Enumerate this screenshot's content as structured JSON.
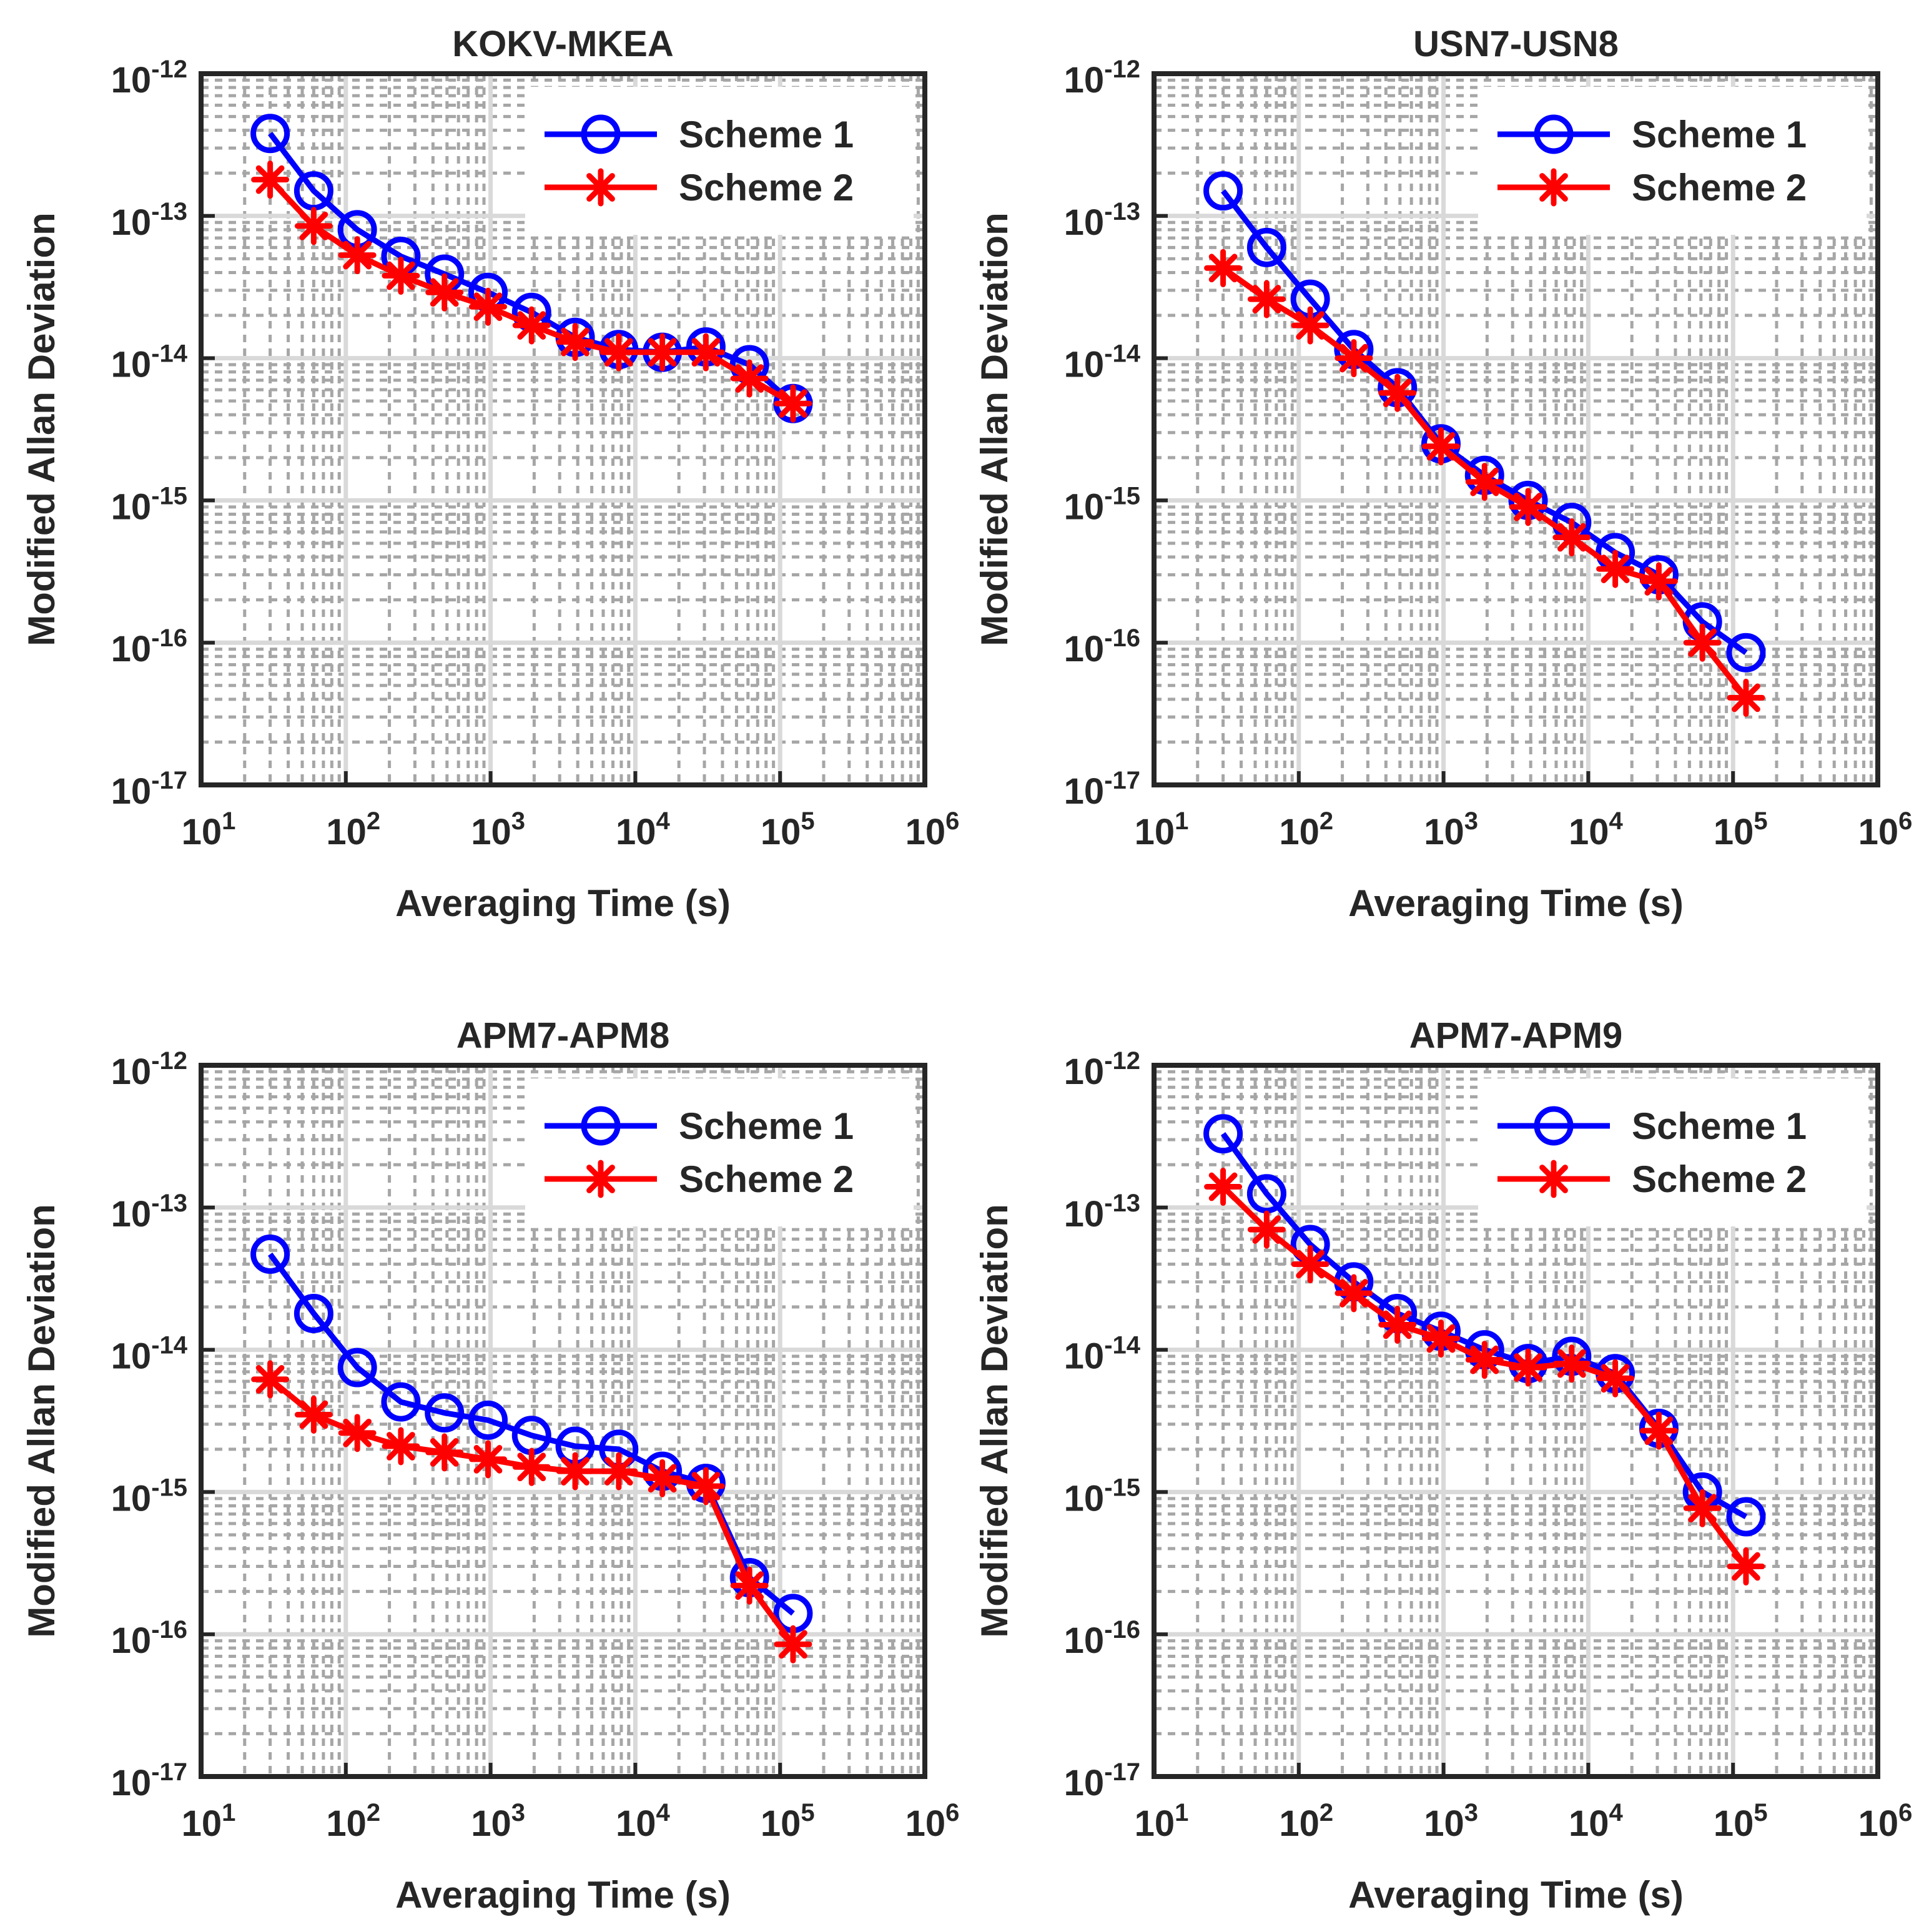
{
  "colors": {
    "scheme1": "#0000ff",
    "scheme2": "#ff0000",
    "axis": "#262626",
    "grid_major": "#d9d9d9",
    "grid_minor": "#a6a6a6"
  },
  "chart_data": [
    {
      "type": "line",
      "title": "KOKV-MKEA",
      "xlabel": "Averaging Time (s)",
      "ylabel": "Modified Allan Deviation",
      "xscale": "log",
      "yscale": "log",
      "xlim": [
        10,
        1000000
      ],
      "ylim": [
        1e-17,
        1e-12
      ],
      "xticks": [
        {
          "base": "10",
          "exp": "1"
        },
        {
          "base": "10",
          "exp": "2"
        },
        {
          "base": "10",
          "exp": "3"
        },
        {
          "base": "10",
          "exp": "4"
        },
        {
          "base": "10",
          "exp": "5"
        },
        {
          "base": "10",
          "exp": "6"
        }
      ],
      "yticks": [
        {
          "base": "10",
          "exp": "-17"
        },
        {
          "base": "10",
          "exp": "-16"
        },
        {
          "base": "10",
          "exp": "-15"
        },
        {
          "base": "10",
          "exp": "-14"
        },
        {
          "base": "10",
          "exp": "-13"
        },
        {
          "base": "10",
          "exp": "-12"
        }
      ],
      "grid": "major and minor",
      "legend_position": "top-right",
      "x": [
        30,
        60,
        120,
        240,
        480,
        960,
        1920,
        3840,
        7680,
        15360,
        30720,
        61440,
        122880
      ],
      "series": [
        {
          "name": "Scheme 1",
          "marker": "circle",
          "color": "#0000ff",
          "values": [
            3.8e-13,
            1.5e-13,
            8e-14,
            5.2e-14,
            3.9e-14,
            2.9e-14,
            2.1e-14,
            1.4e-14,
            1.15e-14,
            1.1e-14,
            1.2e-14,
            9e-15,
            4.8e-15
          ]
        },
        {
          "name": "Scheme 2",
          "marker": "asterisk",
          "color": "#ff0000",
          "values": [
            1.8e-13,
            8.5e-14,
            5.3e-14,
            3.8e-14,
            2.9e-14,
            2.3e-14,
            1.7e-14,
            1.3e-14,
            1.1e-14,
            1.1e-14,
            1.1e-14,
            7.2e-15,
            4.8e-15
          ]
        }
      ]
    },
    {
      "type": "line",
      "title": "USN7-USN8",
      "xlabel": "Averaging Time (s)",
      "ylabel": "Modified Allan Deviation",
      "xscale": "log",
      "yscale": "log",
      "xlim": [
        10,
        1000000
      ],
      "ylim": [
        1e-17,
        1e-12
      ],
      "xticks": [
        {
          "base": "10",
          "exp": "1"
        },
        {
          "base": "10",
          "exp": "2"
        },
        {
          "base": "10",
          "exp": "3"
        },
        {
          "base": "10",
          "exp": "4"
        },
        {
          "base": "10",
          "exp": "5"
        },
        {
          "base": "10",
          "exp": "6"
        }
      ],
      "yticks": [
        {
          "base": "10",
          "exp": "-17"
        },
        {
          "base": "10",
          "exp": "-16"
        },
        {
          "base": "10",
          "exp": "-15"
        },
        {
          "base": "10",
          "exp": "-14"
        },
        {
          "base": "10",
          "exp": "-13"
        },
        {
          "base": "10",
          "exp": "-12"
        }
      ],
      "grid": "major and minor",
      "legend_position": "top-right",
      "x": [
        30,
        60,
        120,
        240,
        480,
        960,
        1920,
        3840,
        7680,
        15360,
        30720,
        61440,
        122880
      ],
      "series": [
        {
          "name": "Scheme 1",
          "marker": "circle",
          "color": "#0000ff",
          "values": [
            1.5e-13,
            6e-14,
            2.6e-14,
            1.15e-14,
            6.2e-15,
            2.5e-15,
            1.5e-15,
            1e-15,
            7e-16,
            4.3e-16,
            3e-16,
            1.4e-16,
            8.5e-17
          ]
        },
        {
          "name": "Scheme 2",
          "marker": "asterisk",
          "color": "#ff0000",
          "values": [
            4.3e-14,
            2.6e-14,
            1.7e-14,
            1e-14,
            5.7e-15,
            2.4e-15,
            1.35e-15,
            9e-16,
            5.5e-16,
            3.3e-16,
            2.7e-16,
            1e-16,
            4.1e-17
          ]
        }
      ]
    },
    {
      "type": "line",
      "title": "APM7-APM8",
      "xlabel": "Averaging Time (s)",
      "ylabel": "Modified Allan Deviation",
      "xscale": "log",
      "yscale": "log",
      "xlim": [
        10,
        1000000
      ],
      "ylim": [
        1e-17,
        1e-12
      ],
      "xticks": [
        {
          "base": "10",
          "exp": "1"
        },
        {
          "base": "10",
          "exp": "2"
        },
        {
          "base": "10",
          "exp": "3"
        },
        {
          "base": "10",
          "exp": "4"
        },
        {
          "base": "10",
          "exp": "5"
        },
        {
          "base": "10",
          "exp": "6"
        }
      ],
      "yticks": [
        {
          "base": "10",
          "exp": "-17"
        },
        {
          "base": "10",
          "exp": "-16"
        },
        {
          "base": "10",
          "exp": "-15"
        },
        {
          "base": "10",
          "exp": "-14"
        },
        {
          "base": "10",
          "exp": "-13"
        },
        {
          "base": "10",
          "exp": "-12"
        }
      ],
      "grid": "major and minor",
      "legend_position": "top-right",
      "x": [
        30,
        60,
        120,
        240,
        480,
        960,
        1920,
        3840,
        7680,
        15360,
        30720,
        61440,
        122880
      ],
      "series": [
        {
          "name": "Scheme 1",
          "marker": "circle",
          "color": "#0000ff",
          "values": [
            4.7e-14,
            1.8e-14,
            7.5e-15,
            4.3e-15,
            3.6e-15,
            3.2e-15,
            2.5e-15,
            2.1e-15,
            2e-15,
            1.4e-15,
            1.15e-15,
            2.5e-16,
            1.4e-16
          ]
        },
        {
          "name": "Scheme 2",
          "marker": "asterisk",
          "color": "#ff0000",
          "values": [
            6.2e-15,
            3.5e-15,
            2.6e-15,
            2.1e-15,
            1.9e-15,
            1.7e-15,
            1.5e-15,
            1.4e-15,
            1.4e-15,
            1.25e-15,
            1.1e-15,
            2.2e-16,
            8.5e-17
          ]
        }
      ]
    },
    {
      "type": "line",
      "title": "APM7-APM9",
      "xlabel": "Averaging Time (s)",
      "ylabel": "Modified Allan Deviation",
      "xscale": "log",
      "yscale": "log",
      "xlim": [
        10,
        1000000
      ],
      "ylim": [
        1e-17,
        1e-12
      ],
      "xticks": [
        {
          "base": "10",
          "exp": "1"
        },
        {
          "base": "10",
          "exp": "2"
        },
        {
          "base": "10",
          "exp": "3"
        },
        {
          "base": "10",
          "exp": "4"
        },
        {
          "base": "10",
          "exp": "5"
        },
        {
          "base": "10",
          "exp": "6"
        }
      ],
      "yticks": [
        {
          "base": "10",
          "exp": "-17"
        },
        {
          "base": "10",
          "exp": "-16"
        },
        {
          "base": "10",
          "exp": "-15"
        },
        {
          "base": "10",
          "exp": "-14"
        },
        {
          "base": "10",
          "exp": "-13"
        },
        {
          "base": "10",
          "exp": "-12"
        }
      ],
      "grid": "major and minor",
      "legend_position": "top-right",
      "x": [
        30,
        60,
        120,
        240,
        480,
        960,
        1920,
        3840,
        7680,
        15360,
        30720,
        61440,
        122880
      ],
      "series": [
        {
          "name": "Scheme 1",
          "marker": "circle",
          "color": "#0000ff",
          "values": [
            3.3e-13,
            1.25e-13,
            5.5e-14,
            3e-14,
            1.8e-14,
            1.35e-14,
            1e-14,
            8e-15,
            9e-15,
            6.8e-15,
            2.8e-15,
            1e-15,
            6.7e-16
          ]
        },
        {
          "name": "Scheme 2",
          "marker": "asterisk",
          "color": "#ff0000",
          "values": [
            1.4e-13,
            7e-14,
            4e-14,
            2.5e-14,
            1.5e-14,
            1.2e-14,
            8.5e-15,
            7.5e-15,
            8e-15,
            6.3e-15,
            2.7e-15,
            7.7e-16,
            3e-16
          ]
        }
      ]
    }
  ]
}
